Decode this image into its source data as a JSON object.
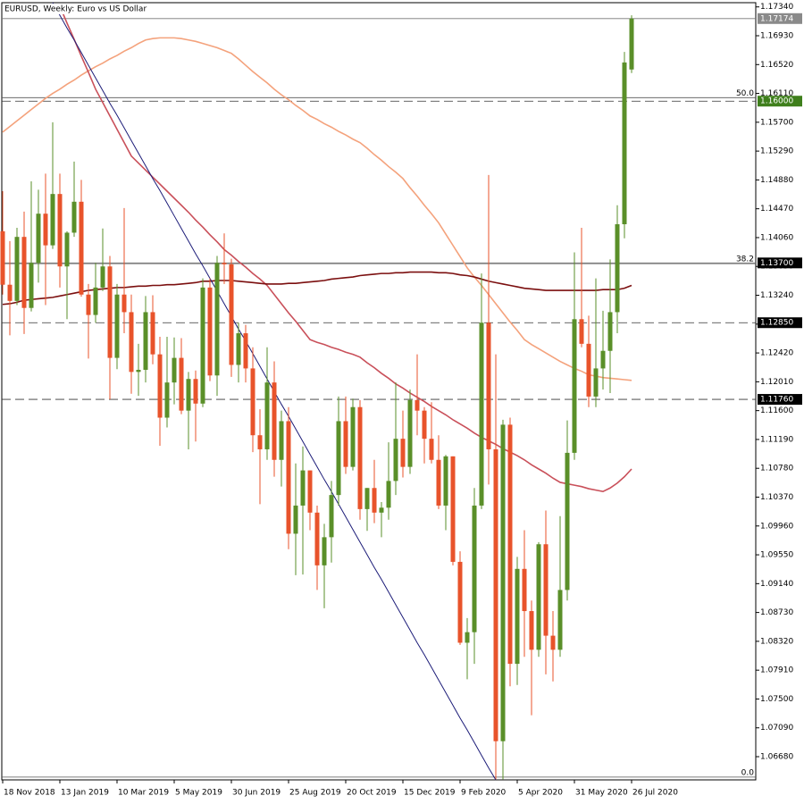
{
  "chart_data": {
    "type": "candlestick",
    "title": "EURUSD, Weekly:  Euro vs US Dollar",
    "categories": [
      "18 Nov 2018",
      null,
      null,
      null,
      null,
      null,
      null,
      null,
      "13 Jan 2019",
      null,
      null,
      null,
      null,
      null,
      null,
      null,
      "10 Mar 2019",
      null,
      null,
      null,
      null,
      null,
      null,
      null,
      "5 May 2019",
      null,
      null,
      null,
      null,
      null,
      null,
      null,
      "30 Jun 2019",
      null,
      null,
      null,
      null,
      null,
      null,
      null,
      "25 Aug 2019",
      null,
      null,
      null,
      null,
      null,
      null,
      null,
      "20 Oct 2019",
      null,
      null,
      null,
      null,
      null,
      null,
      null,
      "15 Dec 2019",
      null,
      null,
      null,
      null,
      null,
      null,
      null,
      "9 Feb 2020",
      null,
      null,
      null,
      null,
      null,
      null,
      null,
      "5 Apr 2020",
      null,
      null,
      null,
      null,
      null,
      null,
      null,
      "31 May 2020",
      null,
      null,
      null,
      null,
      null,
      null,
      null,
      "26 Jul 2020"
    ],
    "open": [
      1.1415,
      1.1339,
      1.1316,
      1.1407,
      1.1306,
      1.137,
      1.144,
      1.1395,
      1.1468,
      1.1365,
      1.1413,
      1.1457,
      1.1325,
      1.1296,
      1.1335,
      1.1365,
      1.1235,
      1.1325,
      1.13,
      1.1215,
      1.1218,
      1.13,
      1.124,
      1.115,
      1.12,
      1.1235,
      1.116,
      1.1205,
      1.117,
      1.1335,
      1.121,
      1.137,
      1.1368,
      1.1225,
      1.127,
      1.122,
      1.1125,
      1.1105,
      1.12,
      1.109,
      1.1145,
      1.0985,
      1.1025,
      1.1075,
      1.1015,
      1.094,
      1.098,
      1.104,
      1.1145,
      1.108,
      1.1165,
      1.102,
      1.105,
      1.1015,
      1.1022,
      1.106,
      1.112,
      1.108,
      1.1175,
      1.116,
      1.112,
      1.109,
      1.1025,
      1.1095,
      1.0945,
      1.083,
      1.0845,
      1.1025,
      1.1285,
      1.1105,
      1.069,
      1.114,
      1.08,
      1.0935,
      1.0875,
      1.082,
      1.097,
      1.084,
      1.082,
      1.0905,
      1.11,
      1.129,
      1.1255,
      1.118,
      1.122,
      1.1245,
      1.13,
      1.1425,
      1.1645
    ],
    "high": [
      1.1472,
      1.1401,
      1.142,
      1.1443,
      1.1486,
      1.1474,
      1.1497,
      1.157,
      1.1497,
      1.1415,
      1.1514,
      1.1488,
      1.134,
      1.137,
      1.1419,
      1.138,
      1.134,
      1.1448,
      1.1325,
      1.1255,
      1.1323,
      1.1324,
      1.1265,
      1.1265,
      1.1264,
      1.1263,
      1.1215,
      1.1217,
      1.1348,
      1.1348,
      1.138,
      1.1412,
      1.1376,
      1.1285,
      1.1282,
      1.125,
      1.1162,
      1.125,
      1.123,
      1.116,
      1.1165,
      1.1085,
      1.1109,
      1.1075,
      1.1025,
      1.0999,
      1.106,
      1.118,
      1.118,
      1.1177,
      1.1175,
      1.105,
      1.109,
      1.103,
      1.1115,
      1.12,
      1.116,
      1.119,
      1.124,
      1.1165,
      1.1172,
      1.1125,
      1.1097,
      1.1095,
      1.096,
      1.0865,
      1.105,
      1.1355,
      1.1495,
      1.124,
      1.1147,
      1.115,
      1.0952,
      1.099,
      1.089,
      1.0973,
      1.1018,
      1.0875,
      1.101,
      1.1146,
      1.1385,
      1.142,
      1.1295,
      1.1348,
      1.1302,
      1.1375,
      1.1452,
      1.167,
      1.1722
    ],
    "low": [
      1.1325,
      1.1267,
      1.131,
      1.1269,
      1.1301,
      1.1342,
      1.131,
      1.139,
      1.1335,
      1.129,
      1.1407,
      1.1322,
      1.1234,
      1.1285,
      1.133,
      1.1176,
      1.1219,
      1.127,
      1.1184,
      1.1181,
      1.12,
      1.1226,
      1.111,
      1.1136,
      1.1169,
      1.1155,
      1.1105,
      1.1116,
      1.1165,
      1.1202,
      1.1181,
      1.134,
      1.1208,
      1.12,
      1.12,
      1.1101,
      1.1027,
      1.109,
      1.1066,
      1.1052,
      1.0963,
      1.0926,
      1.0927,
      1.099,
      1.0905,
      1.0879,
      1.0944,
      1.1025,
      1.107,
      1.1075,
      1.1005,
      1.0989,
      1.1,
      1.098,
      1.1005,
      1.104,
      1.1065,
      1.107,
      1.1125,
      1.1085,
      1.1085,
      1.102,
      1.099,
      1.094,
      1.0827,
      1.0778,
      1.08,
      1.102,
      1.1055,
      1.0636,
      1.0636,
      1.0768,
      1.077,
      1.081,
      1.0727,
      1.081,
      1.0785,
      1.0775,
      1.081,
      1.089,
      1.109,
      1.125,
      1.1165,
      1.1165,
      1.119,
      1.1185,
      1.127,
      1.1405,
      1.164
    ],
    "close": [
      1.1339,
      1.1316,
      1.1407,
      1.1306,
      1.137,
      1.144,
      1.1395,
      1.1468,
      1.1365,
      1.1413,
      1.1457,
      1.1325,
      1.1296,
      1.1335,
      1.1365,
      1.1235,
      1.1325,
      1.13,
      1.1215,
      1.1218,
      1.13,
      1.124,
      1.115,
      1.12,
      1.1235,
      1.116,
      1.1205,
      1.117,
      1.1335,
      1.121,
      1.137,
      1.1368,
      1.1225,
      1.127,
      1.122,
      1.1125,
      1.1105,
      1.12,
      1.109,
      1.1145,
      1.0985,
      1.1025,
      1.1075,
      1.1015,
      1.094,
      1.098,
      1.104,
      1.1145,
      1.108,
      1.1165,
      1.102,
      1.105,
      1.1015,
      1.1022,
      1.106,
      1.112,
      1.108,
      1.1175,
      1.116,
      1.112,
      1.109,
      1.1025,
      1.1095,
      1.0945,
      1.083,
      1.0845,
      1.1025,
      1.1285,
      1.1105,
      1.069,
      1.114,
      1.08,
      1.0935,
      1.0875,
      1.082,
      1.097,
      1.084,
      1.082,
      1.0905,
      1.11,
      1.129,
      1.1255,
      1.118,
      1.122,
      1.1245,
      1.13,
      1.1425,
      1.1655,
      1.17174
    ],
    "up_color": "#5a8f29",
    "down_color": "#e8532b",
    "overlays": [
      {
        "color": "#f4a27c",
        "values": [
          1.1556,
          1.1564,
          1.1572,
          1.158,
          1.1588,
          1.1596,
          1.1604,
          1.1611,
          1.1617,
          1.1624,
          1.163,
          1.1637,
          1.1643,
          1.1649,
          1.1654,
          1.166,
          1.1665,
          1.1671,
          1.1676,
          1.1682,
          1.1687,
          1.1689,
          1.169,
          1.169,
          1.169,
          1.1689,
          1.1687,
          1.1685,
          1.1682,
          1.1679,
          1.1676,
          1.1672,
          1.1668,
          1.166,
          1.1651,
          1.1642,
          1.1634,
          1.1626,
          1.1617,
          1.1609,
          1.1602,
          1.1594,
          1.1587,
          1.1579,
          1.1574,
          1.1568,
          1.1563,
          1.1557,
          1.1552,
          1.1546,
          1.1541,
          1.1533,
          1.1524,
          1.1516,
          1.1507,
          1.1499,
          1.149,
          1.1477,
          1.1465,
          1.1452,
          1.144,
          1.1427,
          1.1411,
          1.1395,
          1.1379,
          1.1363,
          1.135,
          1.1338,
          1.1325,
          1.1312,
          1.1299,
          1.1286,
          1.1274,
          1.1261,
          1.1254,
          1.1248,
          1.1242,
          1.1236,
          1.123,
          1.1225,
          1.122,
          1.1216,
          1.1211,
          1.1209,
          1.1207,
          1.1206,
          1.1205,
          1.1204,
          1.1203
        ]
      },
      {
        "color": "#c9505a",
        "values": [
          null,
          null,
          null,
          null,
          null,
          null,
          null,
          null,
          1.1735,
          1.1711,
          1.1688,
          1.1664,
          1.1641,
          1.1617,
          1.1598,
          1.1579,
          1.156,
          1.1541,
          1.1522,
          1.1512,
          1.1502,
          1.1492,
          1.1482,
          1.1472,
          1.1462,
          1.1452,
          1.1442,
          1.1431,
          1.1421,
          1.141,
          1.14,
          1.1389,
          1.1381,
          1.1372,
          1.1364,
          1.1355,
          1.1347,
          1.1338,
          1.1325,
          1.1312,
          1.1299,
          1.1287,
          1.1274,
          1.1261,
          1.1257,
          1.1254,
          1.125,
          1.1247,
          1.1243,
          1.124,
          1.1236,
          1.1228,
          1.1221,
          1.1213,
          1.1206,
          1.1198,
          1.1192,
          1.1185,
          1.1179,
          1.1173,
          1.1166,
          1.116,
          1.1154,
          1.1147,
          1.1141,
          1.1135,
          1.1128,
          1.1122,
          1.1117,
          1.1112,
          1.1106,
          1.1101,
          1.1096,
          1.109,
          1.1083,
          1.1077,
          1.1071,
          1.1064,
          1.1058,
          1.1056,
          1.1054,
          1.1052,
          1.1049,
          1.1047,
          1.1045,
          1.105,
          1.1057,
          1.1066,
          1.1077
        ]
      },
      {
        "color": "#7b0f0f",
        "values": [
          1.1311,
          1.1312,
          1.1314,
          1.1317,
          1.1318,
          1.1319,
          1.132,
          1.1321,
          1.1323,
          1.1325,
          1.1327,
          1.1329,
          1.1331,
          1.1332,
          1.1333,
          1.1334,
          1.1335,
          1.1335,
          1.1336,
          1.1337,
          1.1337,
          1.1338,
          1.1338,
          1.1339,
          1.1339,
          1.134,
          1.1341,
          1.1342,
          1.1344,
          1.1344,
          1.1345,
          1.1345,
          1.1345,
          1.1344,
          1.1343,
          1.1342,
          1.1341,
          1.134,
          1.134,
          1.134,
          1.1341,
          1.1341,
          1.1342,
          1.1343,
          1.1344,
          1.1345,
          1.1347,
          1.1348,
          1.1349,
          1.135,
          1.1352,
          1.1353,
          1.1354,
          1.1355,
          1.1355,
          1.1356,
          1.1356,
          1.1357,
          1.1357,
          1.1357,
          1.1357,
          1.1356,
          1.1356,
          1.1355,
          1.1353,
          1.1352,
          1.135,
          1.1347,
          1.1344,
          1.1342,
          1.134,
          1.1338,
          1.1336,
          1.1334,
          1.1333,
          1.1332,
          1.1331,
          1.1331,
          1.1331,
          1.1331,
          1.1331,
          1.1331,
          1.1331,
          1.1331,
          1.1332,
          1.1332,
          1.1332,
          1.1334,
          1.1338
        ]
      },
      {
        "color": "#1c1c78",
        "values": [
          null,
          null,
          null,
          null,
          null,
          null,
          null,
          1.174,
          1.1722,
          1.1704,
          1.1687,
          1.1669,
          1.1651,
          1.1633,
          1.1615,
          1.1597,
          1.158,
          1.1562,
          1.1544,
          1.1526,
          1.1508,
          1.149,
          1.1473,
          1.1455,
          1.1437,
          1.1419,
          1.1401,
          1.1383,
          1.1366,
          1.1348,
          1.133,
          1.1312,
          1.1294,
          1.1276,
          1.1259,
          1.1241,
          1.1223,
          1.1205,
          1.1187,
          1.1169,
          1.1152,
          1.1134,
          1.1116,
          1.1098,
          1.108,
          1.1062,
          1.1045,
          1.1027,
          1.1009,
          1.0991,
          1.0973,
          1.0955,
          1.0937,
          1.092,
          1.0902,
          1.0884,
          1.0866,
          1.0848,
          1.083,
          1.0813,
          1.0795,
          1.0777,
          1.0759,
          1.0741,
          1.0723,
          1.0706,
          1.0688,
          1.067,
          1.0652,
          1.0635,
          null,
          null,
          null,
          null,
          null,
          null,
          null,
          null,
          null,
          null,
          null,
          null,
          null,
          null,
          null,
          null,
          null,
          null,
          null
        ]
      }
    ],
    "levels": [
      {
        "value": 1.17174,
        "style": "solid",
        "bg": "#8a8a8a"
      },
      {
        "value": 1.16,
        "label": "1.16000",
        "style": "dashed",
        "bg": "#3f7f1c"
      },
      {
        "value": 1.137,
        "label": "1.13700",
        "style": "solid",
        "bg": "#000000"
      },
      {
        "value": 1.1285,
        "label": "1.12850",
        "style": "dashed",
        "bg": "#000000"
      },
      {
        "value": 1.1176,
        "label": "1.11760",
        "style": "dashed",
        "bg": "#000000"
      }
    ],
    "fib_levels": [
      {
        "label": "50.0",
        "value": 1.1605
      },
      {
        "label": "38.2",
        "value": 1.1369
      },
      {
        "label": "0.0",
        "value": 1.0639
      }
    ],
    "ylim": [
      1.0635,
      1.174
    ],
    "yticks": [
      {
        "value": 1.1734,
        "label": "1.17340"
      },
      {
        "value": 1.1693,
        "label": "1.16930"
      },
      {
        "value": 1.1652,
        "label": "1.16520"
      },
      {
        "value": 1.1611,
        "label": "1.16110"
      },
      {
        "value": 1.157,
        "label": "1.15700"
      },
      {
        "value": 1.1529,
        "label": "1.15290"
      },
      {
        "value": 1.1488,
        "label": "1.14880"
      },
      {
        "value": 1.1447,
        "label": "1.14470"
      },
      {
        "value": 1.1406,
        "label": "1.14060"
      },
      {
        "value": 1.1365,
        "label": "1.13650"
      },
      {
        "value": 1.1324,
        "label": "1.13240"
      },
      {
        "value": 1.1283,
        "label": "1.12830"
      },
      {
        "value": 1.1242,
        "label": "1.12420"
      },
      {
        "value": 1.1201,
        "label": "1.12010"
      },
      {
        "value": 1.116,
        "label": "1.11600"
      },
      {
        "value": 1.1119,
        "label": "1.11190"
      },
      {
        "value": 1.1078,
        "label": "1.10780"
      },
      {
        "value": 1.1037,
        "label": "1.10370"
      },
      {
        "value": 1.0996,
        "label": "1.09960"
      },
      {
        "value": 1.0955,
        "label": "1.09550"
      },
      {
        "value": 1.0914,
        "label": "1.09140"
      },
      {
        "value": 1.0873,
        "label": "1.08730"
      },
      {
        "value": 1.0832,
        "label": "1.08320"
      },
      {
        "value": 1.0791,
        "label": "1.07910"
      },
      {
        "value": 1.075,
        "label": "1.07500"
      },
      {
        "value": 1.0709,
        "label": "1.07090"
      },
      {
        "value": 1.0668,
        "label": "1.06680"
      }
    ],
    "grid": false
  }
}
